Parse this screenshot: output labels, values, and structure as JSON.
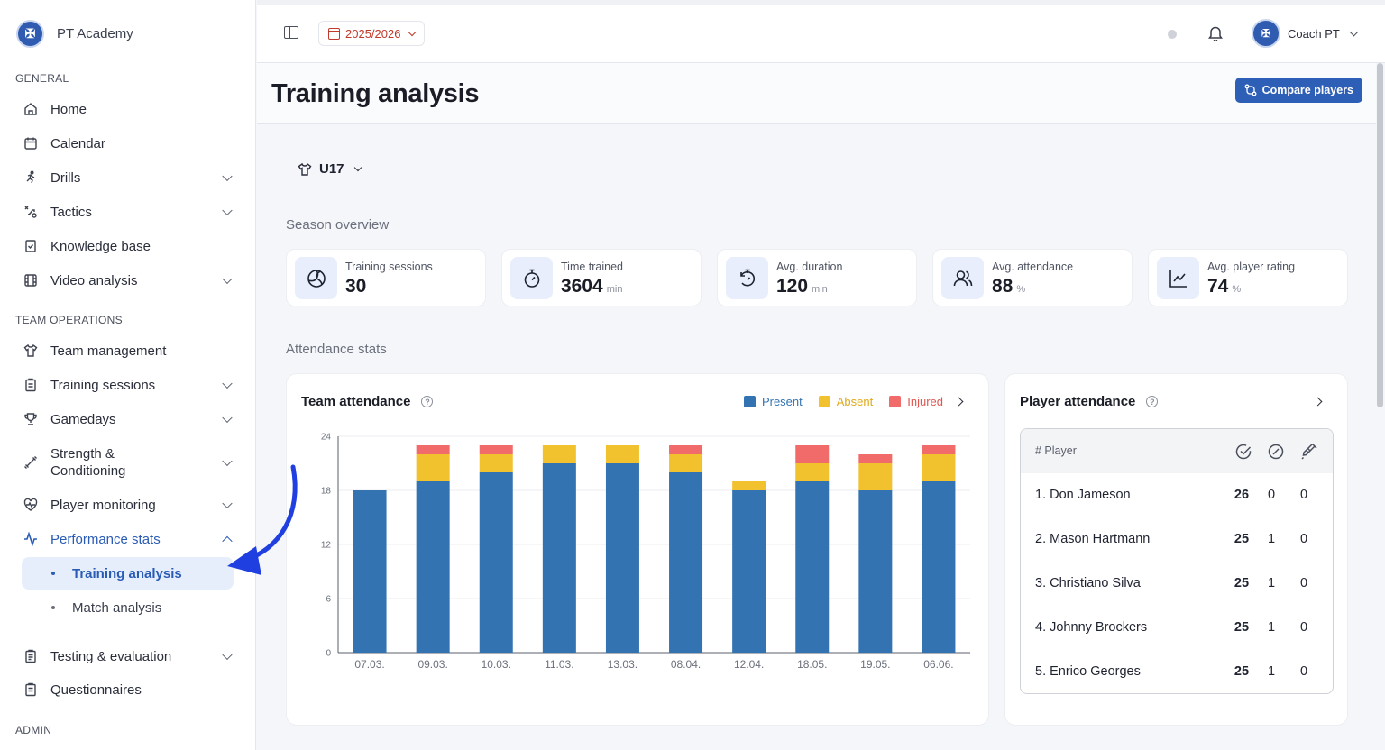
{
  "brand": {
    "name": "PT Academy",
    "logo_icon": "crest-icon"
  },
  "sidebar": {
    "general_label": "GENERAL",
    "team_ops_label": "TEAM OPERATIONS",
    "admin_label": "ADMIN",
    "items": {
      "home": "Home",
      "calendar": "Calendar",
      "drills": "Drills",
      "tactics": "Tactics",
      "knowledge": "Knowledge base",
      "video": "Video analysis",
      "team_mgmt": "Team management",
      "training_sessions": "Training sessions",
      "gamedays": "Gamedays",
      "strength": "Strength & Conditioning",
      "player_monitoring": "Player monitoring",
      "performance_stats": "Performance stats",
      "training_analysis": "Training analysis",
      "match_analysis": "Match analysis",
      "testing": "Testing & evaluation",
      "questionnaires": "Questionnaires"
    }
  },
  "topbar": {
    "season": "2025/2026",
    "user": "Coach PT"
  },
  "page": {
    "title": "Training analysis",
    "compare_label": "Compare players"
  },
  "team": {
    "selected": "U17"
  },
  "season_overview": {
    "heading": "Season overview",
    "cards": [
      {
        "label": "Training sessions",
        "value": "30",
        "unit": "",
        "icon": "ball-icon"
      },
      {
        "label": "Time trained",
        "value": "3604",
        "unit": "min",
        "icon": "stopwatch-icon"
      },
      {
        "label": "Avg. duration",
        "value": "120",
        "unit": "min",
        "icon": "timer-icon"
      },
      {
        "label": "Avg. attendance",
        "value": "88",
        "unit": "%",
        "icon": "users-icon"
      },
      {
        "label": "Avg. player rating",
        "value": "74",
        "unit": "%",
        "icon": "trend-chart-icon"
      }
    ]
  },
  "attendance": {
    "heading": "Attendance stats",
    "team_title": "Team attendance",
    "player_title": "Player attendance",
    "legend": {
      "present": "Present",
      "absent": "Absent",
      "injured": "Injured"
    },
    "colors": {
      "present": "#3373b1",
      "absent": "#f2c12e",
      "injured": "#f26b6b"
    }
  },
  "chart_data": {
    "type": "bar",
    "stacked": true,
    "title": "Team attendance",
    "categories": [
      "07.03.",
      "09.03.",
      "10.03.",
      "11.03.",
      "13.03.",
      "08.04.",
      "12.04.",
      "18.05.",
      "19.05.",
      "06.06."
    ],
    "series": [
      {
        "name": "Present",
        "values": [
          18,
          19,
          20,
          21,
          21,
          20,
          18,
          19,
          18,
          19
        ]
      },
      {
        "name": "Absent",
        "values": [
          0,
          3,
          2,
          2,
          2,
          2,
          1,
          2,
          3,
          3
        ]
      },
      {
        "name": "Injured",
        "values": [
          0,
          1,
          1,
          0,
          0,
          1,
          0,
          2,
          1,
          1
        ]
      }
    ],
    "ylim": [
      0,
      24
    ],
    "yticks": [
      0,
      6,
      12,
      18,
      24
    ],
    "grid": true,
    "legend_position": "top-right"
  },
  "player_attendance": {
    "header_label": "# Player",
    "header_icons": [
      "check-circle-icon",
      "slash-circle-icon",
      "syringe-icon"
    ],
    "rows": [
      {
        "name": "1. Don Jameson",
        "present": "26",
        "absent": "0",
        "injured": "0"
      },
      {
        "name": "2. Mason Hartmann",
        "present": "25",
        "absent": "1",
        "injured": "0"
      },
      {
        "name": "3. Christiano Silva",
        "present": "25",
        "absent": "1",
        "injured": "0"
      },
      {
        "name": "4. Johnny Brockers",
        "present": "25",
        "absent": "1",
        "injured": "0"
      },
      {
        "name": "5. Enrico Georges",
        "present": "25",
        "absent": "1",
        "injured": "0"
      }
    ]
  },
  "annotation": {
    "arrow_color": "#1f3fe0"
  }
}
